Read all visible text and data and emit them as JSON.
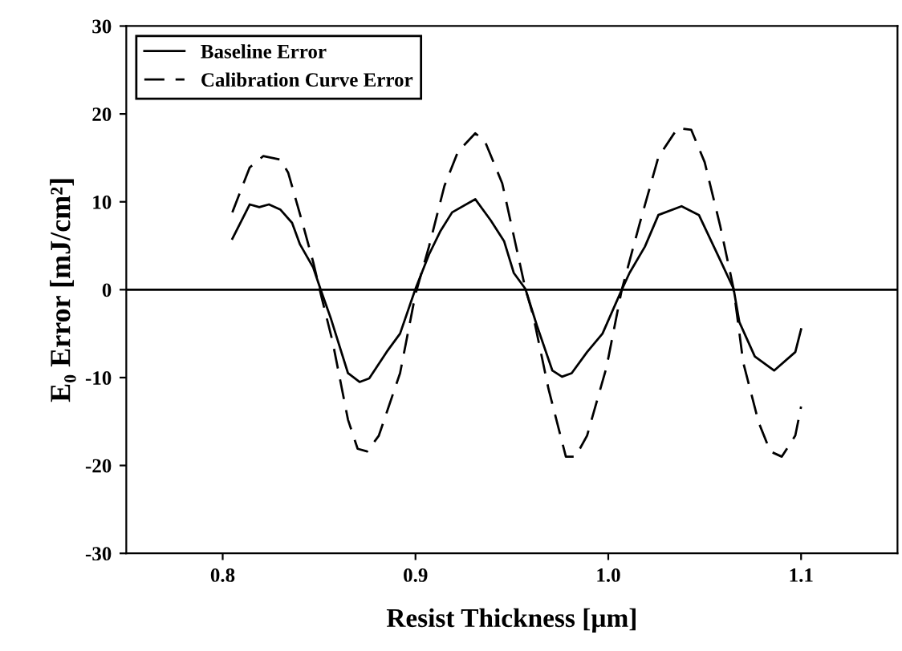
{
  "chart_data": {
    "type": "line",
    "xlabel": "Resist Thickness [µm]",
    "ylabel": "E₀ Error [mJ/cm²]",
    "xlim": [
      0.75,
      1.15
    ],
    "xticks": [
      0.8,
      0.9,
      {
        "value": 1.0,
        "label": "1.0"
      },
      1.1
    ],
    "ylim": [
      -30,
      30
    ],
    "yticks": [
      -30,
      -20,
      -10,
      0,
      10,
      20,
      30
    ],
    "grid": false,
    "legend": "top left",
    "marker": "none",
    "ref_lines": [
      {
        "axis": "y",
        "value": 0,
        "color": "#000000",
        "line_style": "solid"
      }
    ],
    "series": [
      {
        "name": "Baseline Error",
        "color": "#000000",
        "line_style": "solid",
        "x": [
          0.805,
          0.814,
          0.819,
          0.824,
          0.83,
          0.836,
          0.84,
          0.847,
          0.851,
          0.856,
          0.865,
          0.871,
          0.876,
          0.885,
          0.892,
          0.9,
          0.907,
          0.913,
          0.919,
          0.931,
          0.939,
          0.946,
          0.951,
          0.957,
          0.963,
          0.971,
          0.976,
          0.981,
          0.989,
          0.997,
          1.007,
          1.011,
          1.019,
          1.026,
          1.038,
          1.047,
          1.058,
          1.065,
          1.068,
          1.076,
          1.086,
          1.097,
          1.1
        ],
        "values": [
          5.8,
          9.7,
          9.4,
          9.7,
          9.1,
          7.6,
          5.2,
          2.5,
          -0.1,
          -3.2,
          -9.5,
          -10.5,
          -10.1,
          -7.1,
          -5.0,
          0.1,
          4.0,
          6.7,
          8.8,
          10.3,
          7.9,
          5.5,
          1.9,
          0.1,
          -4.1,
          -9.2,
          -9.9,
          -9.5,
          -7.1,
          -5.0,
          0.0,
          1.9,
          4.9,
          8.5,
          9.5,
          8.5,
          3.4,
          0.1,
          -3.7,
          -7.6,
          -9.2,
          -7.1,
          -4.5
        ]
      },
      {
        "name": "Calibration Curve Error",
        "color": "#000000",
        "line_style": "dashed",
        "x": [
          0.805,
          0.814,
          0.821,
          0.83,
          0.834,
          0.841,
          0.847,
          0.851,
          0.857,
          0.865,
          0.87,
          0.875,
          0.881,
          0.892,
          0.9,
          0.907,
          0.915,
          0.922,
          0.931,
          0.936,
          0.945,
          0.951,
          0.957,
          0.961,
          0.969,
          0.978,
          0.983,
          0.989,
          0.999,
          1.007,
          1.016,
          1.026,
          1.036,
          1.043,
          1.05,
          1.058,
          1.065,
          1.07,
          1.078,
          1.084,
          1.09,
          1.097,
          1.1
        ],
        "values": [
          8.8,
          13.9,
          15.2,
          14.8,
          13.3,
          7.9,
          3.1,
          -0.6,
          -5.9,
          -14.8,
          -18.1,
          -18.4,
          -16.6,
          -9.5,
          -0.5,
          4.9,
          11.8,
          15.7,
          17.8,
          16.9,
          12.1,
          6.1,
          0.1,
          -2.9,
          -11.3,
          -19.0,
          -19.0,
          -16.6,
          -8.9,
          0.0,
          7.3,
          15.1,
          18.4,
          18.2,
          14.5,
          7.3,
          0.1,
          -8.3,
          -15.1,
          -18.4,
          -19.0,
          -16.6,
          -13.3
        ]
      }
    ]
  }
}
